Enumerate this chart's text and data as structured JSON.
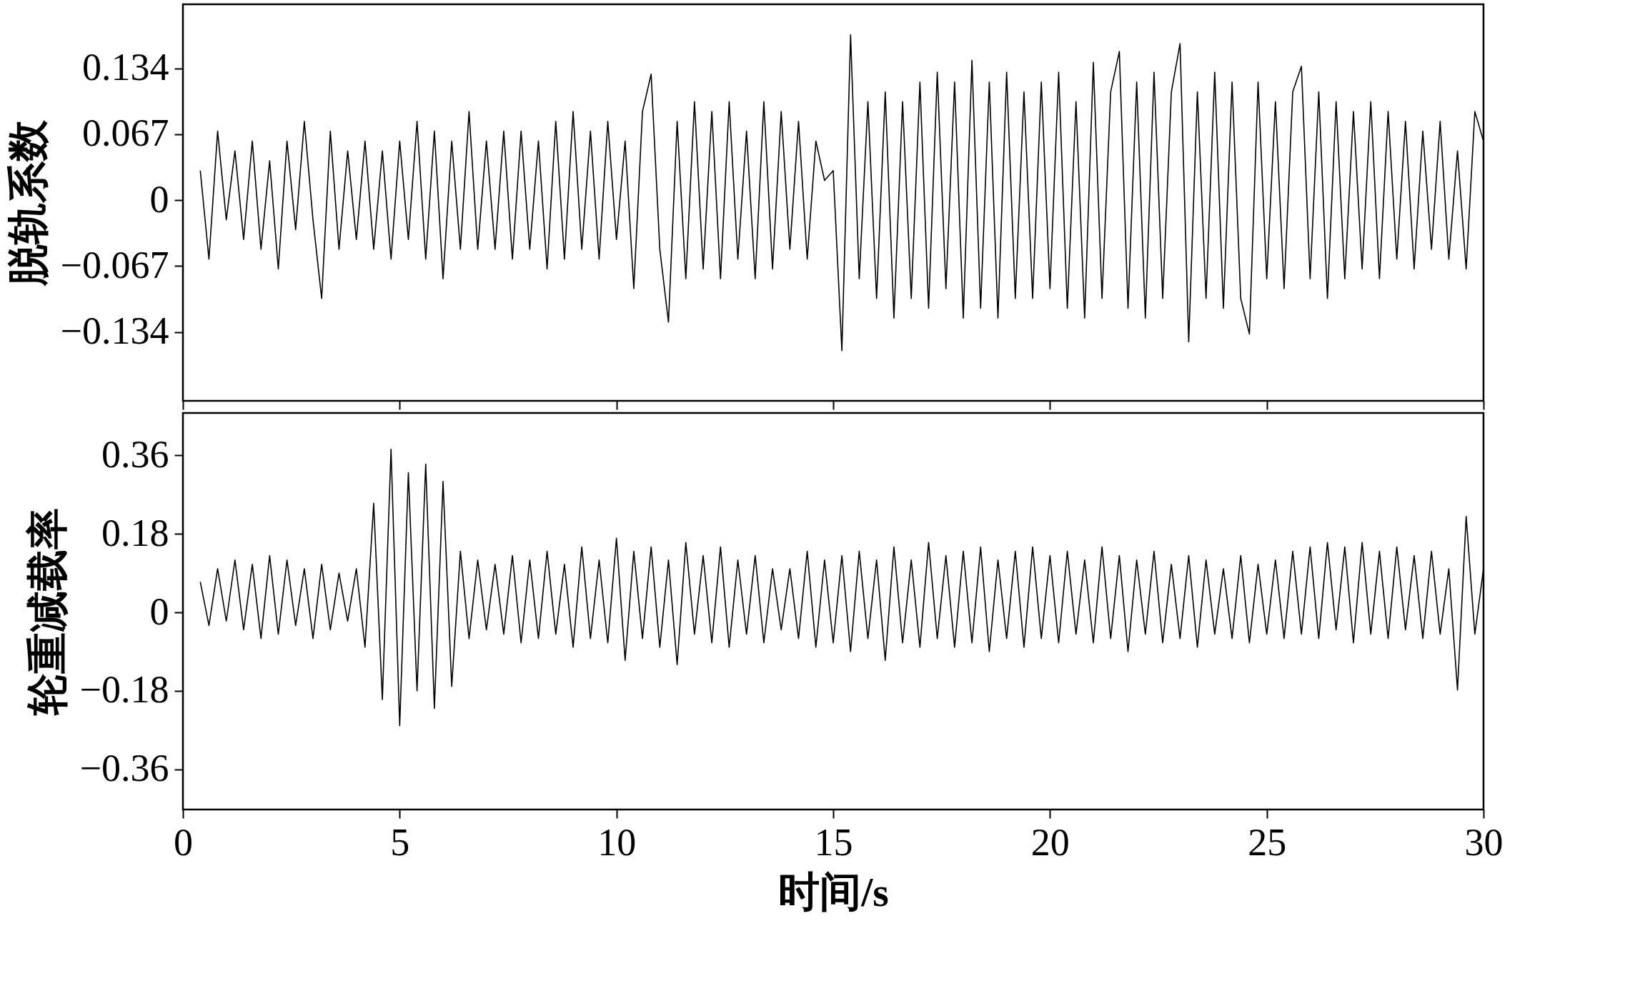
{
  "chart_data": [
    {
      "type": "line",
      "ylabel": "脱轨系数",
      "xlim": [
        0,
        30
      ],
      "xticks": [
        0,
        5,
        10,
        15,
        20,
        25,
        30
      ],
      "ylim": [
        -0.204,
        0.199
      ],
      "yticks": [
        {
          "value": -0.134,
          "label": "−0.134"
        },
        {
          "value": -0.067,
          "label": "−0.067"
        },
        0,
        0.067,
        0.134
      ],
      "tick_labels": "y",
      "grid": false,
      "series": [
        {
          "color": "#000000",
          "x": [
            0.4,
            0.6,
            0.8,
            1.0,
            1.2,
            1.4,
            1.6,
            1.8,
            2.0,
            2.2,
            2.4,
            2.6,
            2.8,
            3.0,
            3.2,
            3.4,
            3.6,
            3.8,
            4.0,
            4.2,
            4.4,
            4.6,
            4.8,
            5.0,
            5.2,
            5.4,
            5.6,
            5.8,
            6.0,
            6.2,
            6.4,
            6.6,
            6.8,
            7.0,
            7.2,
            7.4,
            7.6,
            7.8,
            8.0,
            8.2,
            8.4,
            8.6,
            8.8,
            9.0,
            9.2,
            9.4,
            9.6,
            9.8,
            10.0,
            10.2,
            10.4,
            10.6,
            10.8,
            11.0,
            11.2,
            11.4,
            11.6,
            11.8,
            12.0,
            12.2,
            12.4,
            12.6,
            12.8,
            13.0,
            13.2,
            13.4,
            13.6,
            13.8,
            14.0,
            14.2,
            14.4,
            14.6,
            14.8,
            15.0,
            15.2,
            15.4,
            15.6,
            15.8,
            16.0,
            16.2,
            16.4,
            16.6,
            16.8,
            17.0,
            17.2,
            17.4,
            17.6,
            17.8,
            18.0,
            18.2,
            18.4,
            18.6,
            18.8,
            19.0,
            19.2,
            19.4,
            19.6,
            19.8,
            20.0,
            20.2,
            20.4,
            20.6,
            20.8,
            21.0,
            21.2,
            21.4,
            21.6,
            21.8,
            22.0,
            22.2,
            22.4,
            22.6,
            22.8,
            23.0,
            23.2,
            23.4,
            23.6,
            23.8,
            24.0,
            24.2,
            24.4,
            24.6,
            24.8,
            25.0,
            25.2,
            25.4,
            25.6,
            25.8,
            26.0,
            26.2,
            26.4,
            26.6,
            26.8,
            27.0,
            27.2,
            27.4,
            27.6,
            27.8,
            28.0,
            28.2,
            28.4,
            28.6,
            28.8,
            29.0,
            29.2,
            29.4,
            29.6,
            29.8,
            30.0
          ],
          "values": [
            0.03,
            -0.06,
            0.07,
            -0.02,
            0.05,
            -0.04,
            0.06,
            -0.05,
            0.04,
            -0.07,
            0.06,
            -0.03,
            0.08,
            -0.02,
            -0.1,
            0.07,
            -0.05,
            0.05,
            -0.04,
            0.06,
            -0.05,
            0.05,
            -0.06,
            0.06,
            -0.04,
            0.08,
            -0.06,
            0.07,
            -0.08,
            0.06,
            -0.05,
            0.09,
            -0.05,
            0.06,
            -0.05,
            0.07,
            -0.06,
            0.07,
            -0.05,
            0.06,
            -0.07,
            0.08,
            -0.06,
            0.09,
            -0.05,
            0.07,
            -0.06,
            0.08,
            -0.04,
            0.06,
            -0.09,
            0.09,
            0.128,
            -0.05,
            -0.124,
            0.08,
            -0.08,
            0.1,
            -0.07,
            0.09,
            -0.08,
            0.1,
            -0.06,
            0.07,
            -0.08,
            0.1,
            -0.07,
            0.09,
            -0.05,
            0.08,
            -0.06,
            0.06,
            0.02,
            0.03,
            -0.153,
            0.168,
            -0.08,
            0.1,
            -0.1,
            0.11,
            -0.12,
            0.1,
            -0.1,
            0.12,
            -0.11,
            0.13,
            -0.09,
            0.12,
            -0.12,
            0.142,
            -0.11,
            0.12,
            -0.12,
            0.13,
            -0.1,
            0.11,
            -0.1,
            0.12,
            -0.09,
            0.13,
            -0.11,
            0.1,
            -0.12,
            0.14,
            -0.1,
            0.11,
            0.151,
            -0.11,
            0.12,
            -0.12,
            0.13,
            -0.1,
            0.11,
            0.159,
            -0.144,
            0.11,
            -0.1,
            0.13,
            -0.11,
            0.12,
            -0.1,
            -0.136,
            0.12,
            -0.08,
            0.1,
            -0.09,
            0.11,
            0.136,
            -0.08,
            0.11,
            -0.1,
            0.1,
            -0.08,
            0.09,
            -0.07,
            0.1,
            -0.08,
            0.09,
            -0.06,
            0.08,
            -0.07,
            0.07,
            -0.05,
            0.08,
            -0.06,
            0.05,
            -0.07,
            0.09,
            0.06
          ]
        }
      ]
    },
    {
      "type": "line",
      "ylabel": "轮重减载率",
      "xlabel": "时间/s",
      "xlim": [
        0,
        30
      ],
      "xticks": [
        0,
        5,
        10,
        15,
        20,
        25,
        30
      ],
      "ylim": [
        -0.452,
        0.457
      ],
      "yticks": [
        {
          "value": -0.36,
          "label": "−0.36"
        },
        {
          "value": -0.18,
          "label": "−0.18"
        },
        0,
        0.18,
        0.36
      ],
      "grid": false,
      "series": [
        {
          "color": "#000000",
          "x": [
            0.4,
            0.6,
            0.8,
            1.0,
            1.2,
            1.4,
            1.6,
            1.8,
            2.0,
            2.2,
            2.4,
            2.6,
            2.8,
            3.0,
            3.2,
            3.4,
            3.6,
            3.8,
            4.0,
            4.2,
            4.4,
            4.6,
            4.8,
            5.0,
            5.2,
            5.4,
            5.6,
            5.8,
            6.0,
            6.2,
            6.4,
            6.6,
            6.8,
            7.0,
            7.2,
            7.4,
            7.6,
            7.8,
            8.0,
            8.2,
            8.4,
            8.6,
            8.8,
            9.0,
            9.2,
            9.4,
            9.6,
            9.8,
            10.0,
            10.2,
            10.4,
            10.6,
            10.8,
            11.0,
            11.2,
            11.4,
            11.6,
            11.8,
            12.0,
            12.2,
            12.4,
            12.6,
            12.8,
            13.0,
            13.2,
            13.4,
            13.6,
            13.8,
            14.0,
            14.2,
            14.4,
            14.6,
            14.8,
            15.0,
            15.2,
            15.4,
            15.6,
            15.8,
            16.0,
            16.2,
            16.4,
            16.6,
            16.8,
            17.0,
            17.2,
            17.4,
            17.6,
            17.8,
            18.0,
            18.2,
            18.4,
            18.6,
            18.8,
            19.0,
            19.2,
            19.4,
            19.6,
            19.8,
            20.0,
            20.2,
            20.4,
            20.6,
            20.8,
            21.0,
            21.2,
            21.4,
            21.6,
            21.8,
            22.0,
            22.2,
            22.4,
            22.6,
            22.8,
            23.0,
            23.2,
            23.4,
            23.6,
            23.8,
            24.0,
            24.2,
            24.4,
            24.6,
            24.8,
            25.0,
            25.2,
            25.4,
            25.6,
            25.8,
            26.0,
            26.2,
            26.4,
            26.6,
            26.8,
            27.0,
            27.2,
            27.4,
            27.6,
            27.8,
            28.0,
            28.2,
            28.4,
            28.6,
            28.8,
            29.0,
            29.2,
            29.4,
            29.6,
            29.8,
            30.0
          ],
          "values": [
            0.07,
            -0.03,
            0.1,
            -0.02,
            0.12,
            -0.04,
            0.11,
            -0.06,
            0.13,
            -0.05,
            0.12,
            -0.03,
            0.1,
            -0.06,
            0.11,
            -0.04,
            0.09,
            -0.02,
            0.1,
            -0.08,
            0.25,
            -0.2,
            0.374,
            -0.26,
            0.32,
            -0.18,
            0.34,
            -0.22,
            0.3,
            -0.17,
            0.14,
            -0.06,
            0.12,
            -0.04,
            0.11,
            -0.05,
            0.13,
            -0.07,
            0.12,
            -0.06,
            0.14,
            -0.05,
            0.11,
            -0.08,
            0.15,
            -0.06,
            0.12,
            -0.07,
            0.17,
            -0.11,
            0.14,
            -0.06,
            0.15,
            -0.08,
            0.12,
            -0.12,
            0.16,
            -0.05,
            0.13,
            -0.07,
            0.15,
            -0.08,
            0.12,
            -0.05,
            0.13,
            -0.07,
            0.1,
            -0.04,
            0.1,
            -0.06,
            0.14,
            -0.08,
            0.12,
            -0.07,
            0.13,
            -0.09,
            0.14,
            -0.06,
            0.12,
            -0.11,
            0.15,
            -0.07,
            0.12,
            -0.08,
            0.16,
            -0.06,
            0.13,
            -0.08,
            0.14,
            -0.07,
            0.15,
            -0.09,
            0.12,
            -0.06,
            0.14,
            -0.08,
            0.15,
            -0.06,
            0.13,
            -0.07,
            0.14,
            -0.05,
            0.12,
            -0.07,
            0.15,
            -0.06,
            0.13,
            -0.09,
            0.12,
            -0.05,
            0.14,
            -0.07,
            0.11,
            -0.06,
            0.13,
            -0.08,
            0.12,
            -0.05,
            0.1,
            -0.06,
            0.13,
            -0.07,
            0.11,
            -0.05,
            0.12,
            -0.06,
            0.14,
            -0.05,
            0.15,
            -0.06,
            0.16,
            -0.04,
            0.15,
            -0.07,
            0.16,
            -0.05,
            0.14,
            -0.06,
            0.15,
            -0.04,
            0.13,
            -0.06,
            0.14,
            -0.05,
            0.1,
            -0.178,
            0.22,
            -0.05,
            0.1
          ]
        }
      ]
    }
  ]
}
